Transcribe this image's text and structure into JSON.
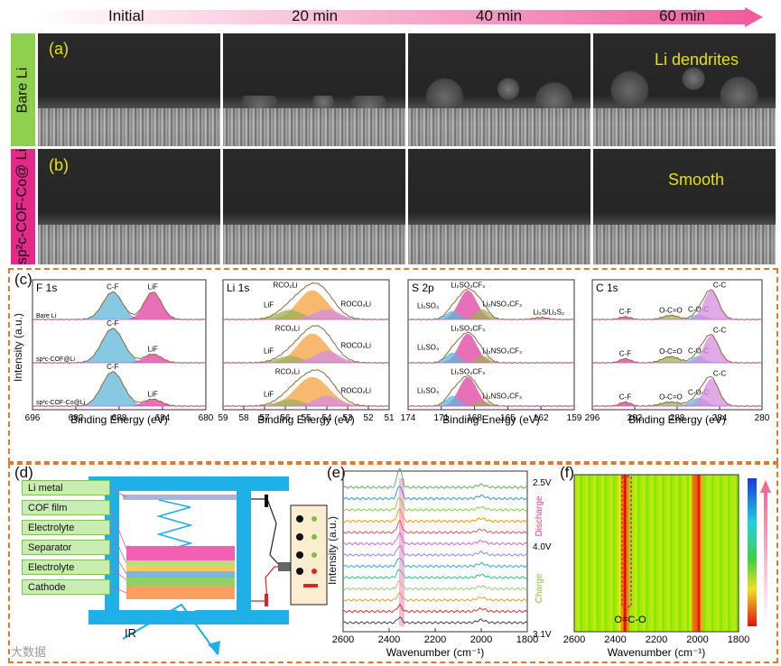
{
  "time_labels": [
    "Initial",
    "20 min",
    "40 min",
    "60 min"
  ],
  "row_a": {
    "sidebar": "Bare Li",
    "panel": "(a)",
    "annotation": "Li dendrites"
  },
  "row_b": {
    "sidebar": "sp²c-COF-Co@ Li",
    "panel": "(b)",
    "annotation": "Smooth"
  },
  "c": {
    "panel": "(c)",
    "ylabel": "Intensity (a.u.)",
    "xlabel": "Binding Energy (eV)",
    "colors": {
      "blue": "#5fb6d9",
      "pink": "#e040a0",
      "orange": "#f4a040",
      "green": "#9ac060",
      "violet": "#d68ee0",
      "olive": "#9cb05a"
    },
    "f1s": {
      "title": "F 1s",
      "ticks": [
        "696",
        "692",
        "688",
        "684",
        "680"
      ],
      "xrange": [
        696,
        680
      ],
      "peaks": [
        [
          "C-F",
          "LiF"
        ],
        [
          "C-F",
          "LiF"
        ],
        [
          "C-F",
          "LiF"
        ]
      ],
      "samples": [
        "Bare Li",
        "sp²c-COF@Li",
        "sp²c-COF-Co@Li"
      ]
    },
    "li1s": {
      "title": "Li 1s",
      "ticks": [
        "59",
        "58",
        "57",
        "56",
        "55",
        "54",
        "53",
        "52",
        "51"
      ],
      "xrange": [
        59,
        51
      ],
      "peaks": [
        [
          "RCO₂Li",
          "LiF",
          "ROCO₂Li"
        ],
        [
          "RCO₂Li",
          "LiF",
          "ROCO₂Li"
        ],
        [
          "RCO₂Li",
          "LiF",
          "ROCO₂Li"
        ]
      ]
    },
    "s2p": {
      "title": "S 2p",
      "ticks": [
        "174",
        "171",
        "168",
        "165",
        "162",
        "159"
      ],
      "xrange": [
        174,
        159
      ],
      "peaks": [
        [
          "Li₂SO₃CF₃",
          "Li₂SO₄",
          "Li₂NSO₃CF₃",
          "Li₂S/Li₂S₂"
        ],
        [
          "Li₂SO₃CF₃",
          "Li₂SO₄",
          "Li₂NSO₃CF₃"
        ],
        [
          "Li₂SO₃CF₃",
          "Li₂SO₄",
          "Li₂NSO₃CF₃"
        ]
      ]
    },
    "c1s": {
      "title": "C 1s",
      "ticks": [
        "296",
        "292",
        "288",
        "284",
        "280"
      ],
      "xrange": [
        296,
        280
      ],
      "peaks": [
        [
          "C-F",
          "O-C=O",
          "C-O-C",
          "C-C"
        ],
        [
          "C-F",
          "O-C=O",
          "C-O-C",
          "C-C"
        ],
        [
          "C-F",
          "O-C=O",
          "C-O-C",
          "C-C"
        ]
      ]
    }
  },
  "d": {
    "panel": "(d)",
    "layers": [
      "Li metal",
      "COF film",
      "Electrolyte",
      "Separator",
      "Electrolyte",
      "Cathode"
    ],
    "ir_label": "IR"
  },
  "e": {
    "panel": "(e)",
    "ylabel": "Intensity (a.u.)",
    "xlabel": "Wavenumber (cm⁻¹)",
    "ticks": [
      "2600",
      "2400",
      "2200",
      "2000",
      "1800"
    ],
    "xrange": [
      2600,
      1800
    ],
    "voltage_labels": [
      "2.5V",
      "4.0V",
      "3.1V"
    ],
    "discharge": "Discharge",
    "charge": "Charge",
    "highlight_cm": 2345
  },
  "f": {
    "panel": "(f)",
    "xlabel": "Wavenumber (cm⁻¹)",
    "ticks": [
      "2600",
      "2400",
      "2200",
      "2000",
      "1800"
    ],
    "xrange": [
      2600,
      1800
    ],
    "annotation": "O=C-O",
    "highlight_cm": 2345
  },
  "watermark": "大数据"
}
